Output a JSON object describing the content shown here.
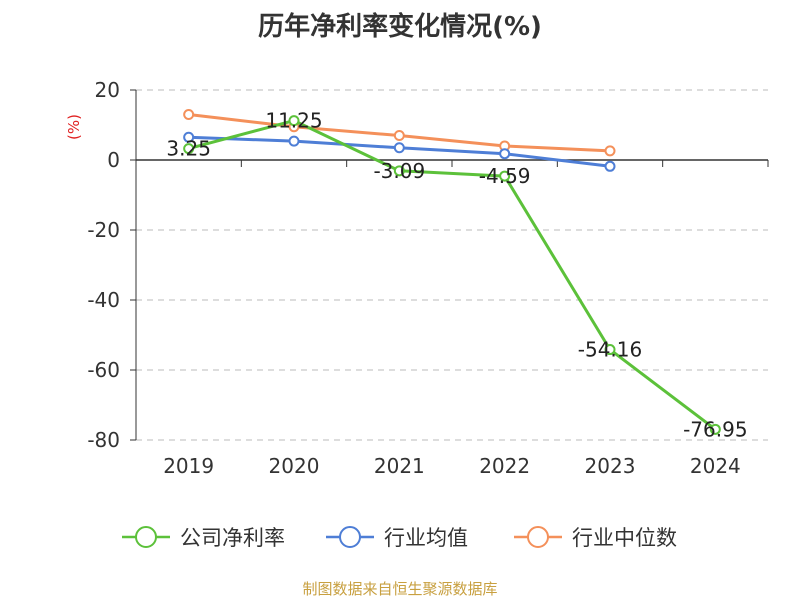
{
  "title": "历年净利率变化情况(%)",
  "source": "制图数据来自恒生聚源数据库",
  "chart_data": {
    "type": "line",
    "title": "历年净利率变化情况(%)",
    "ylabel": "(%)",
    "xlabel": "",
    "categories": [
      "2019",
      "2020",
      "2021",
      "2022",
      "2023",
      "2024"
    ],
    "ylim": [
      -80,
      20
    ],
    "yticks": [
      20,
      0,
      -20,
      -40,
      -60,
      -80
    ],
    "grid": true,
    "legend_position": "bottom",
    "series": [
      {
        "name": "公司净利率",
        "color": "#5cc13a",
        "values": [
          3.25,
          11.25,
          -3.09,
          -4.59,
          -54.16,
          -76.95
        ],
        "labels": [
          "3.25",
          "11.25",
          "-3.09",
          "-4.59",
          "-54.16",
          "-76.95"
        ]
      },
      {
        "name": "行业均值",
        "color": "#4e7ed6",
        "values": [
          6.5,
          5.4,
          3.5,
          1.8,
          -1.8,
          null
        ]
      },
      {
        "name": "行业中位数",
        "color": "#f4905a",
        "values": [
          13.0,
          9.5,
          7.0,
          4.0,
          2.6,
          null
        ]
      }
    ]
  }
}
